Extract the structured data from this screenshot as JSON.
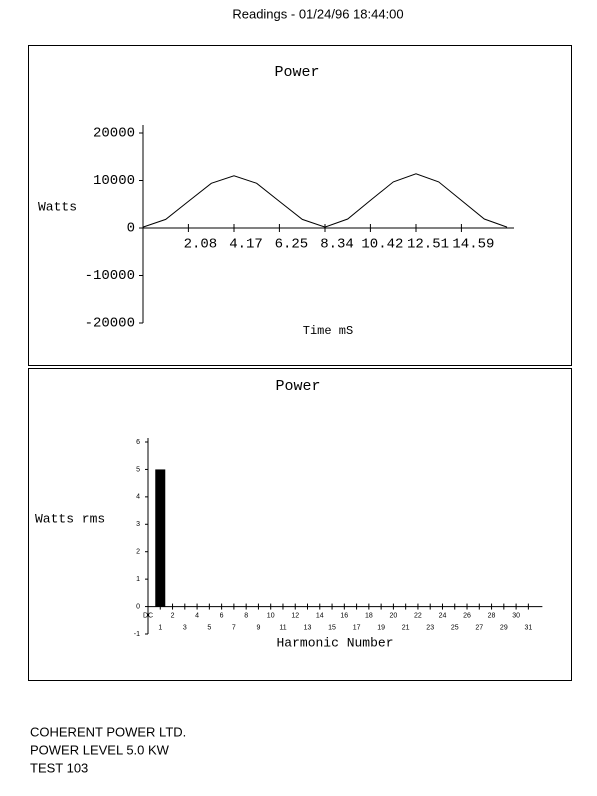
{
  "header": {
    "title": "Readings - 01/24/96 18:44:00"
  },
  "footer": {
    "lines": [
      "COHERENT POWER LTD.",
      "POWER LEVEL 5.0 KW",
      "TEST 103"
    ]
  },
  "chart_data": [
    {
      "type": "line",
      "title": "Power",
      "y_label": "Watts",
      "x_label": "Time mS",
      "x": [
        0,
        1.04,
        2.08,
        3.13,
        4.17,
        5.21,
        6.25,
        7.3,
        8.34,
        9.38,
        10.42,
        11.47,
        12.51,
        13.55,
        14.59,
        15.64,
        16.68
      ],
      "values": [
        200,
        1800,
        5600,
        9400,
        11000,
        9400,
        5600,
        1800,
        200,
        1900,
        5800,
        9700,
        11400,
        9700,
        5800,
        1900,
        200
      ],
      "color": "#000000",
      "xlim": [
        0,
        17
      ],
      "xticks": [
        2.08,
        4.17,
        6.25,
        8.34,
        10.42,
        12.51,
        14.59
      ],
      "ylim": [
        -20000,
        20000
      ],
      "yticks": [
        -20000,
        -10000,
        0,
        10000,
        20000
      ]
    },
    {
      "type": "bar",
      "title": "Power",
      "y_label": "Watts rms",
      "x_label": "Harmonic Number",
      "categories": [
        "DC",
        "1",
        "2",
        "3",
        "4",
        "5",
        "6",
        "7",
        "8",
        "9",
        "10",
        "11",
        "12",
        "13",
        "14",
        "15",
        "16",
        "17",
        "18",
        "19",
        "20",
        "21",
        "22",
        "23",
        "24",
        "25",
        "26",
        "27",
        "28",
        "29",
        "30",
        "31"
      ],
      "values": [
        0,
        5,
        0,
        0,
        0,
        0,
        0,
        0,
        0,
        0,
        0,
        0,
        0,
        0,
        0,
        0,
        0,
        0,
        0,
        0,
        0,
        0,
        0,
        0,
        0,
        0,
        0,
        0,
        0,
        0,
        0,
        0
      ],
      "color": "#000000",
      "ylim": [
        -1,
        6
      ],
      "yticks": [
        -1,
        0,
        1,
        2,
        3,
        4,
        5,
        6
      ]
    }
  ]
}
